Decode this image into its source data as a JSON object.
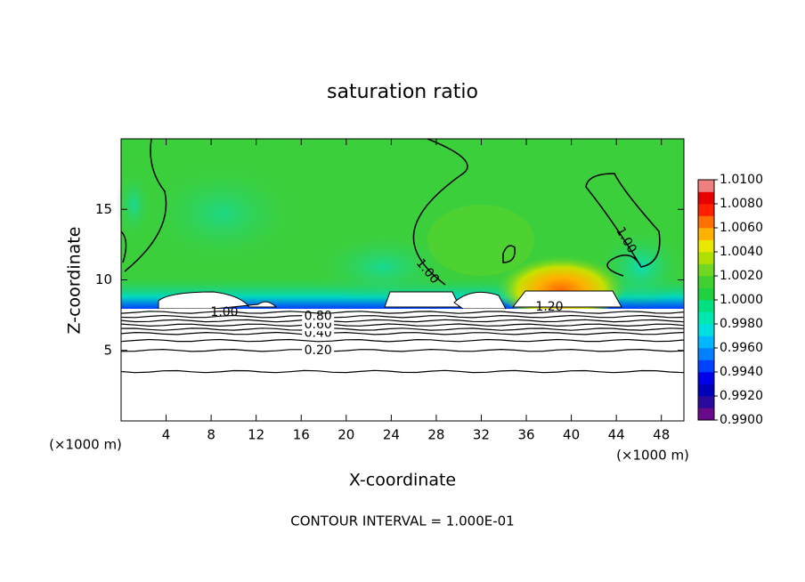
{
  "chart_data": {
    "type": "contour",
    "title": "saturation ratio",
    "x_label": "X-coordinate",
    "y_label": "Z-coordinate",
    "x_unit": "(×1000 m)",
    "y_unit": "(×1000 m)",
    "xlim": [
      0,
      50
    ],
    "xticks": [
      4,
      8,
      12,
      16,
      20,
      24,
      28,
      32,
      36,
      40,
      44,
      48
    ],
    "ylim": [
      0,
      20
    ],
    "yticks": [
      5,
      10,
      15
    ],
    "contours": [
      {
        "level": 0.1,
        "z": 3.5
      },
      {
        "level": {
          "value": 0.2,
          "label": "0.20"
        },
        "z": 5.0
      },
      {
        "level": 0.3,
        "z": 5.7
      },
      {
        "level": {
          "value": 0.4,
          "label": "0.40"
        },
        "z": 6.2
      },
      {
        "level": 0.5,
        "z": 6.5
      },
      {
        "level": {
          "value": 0.6,
          "label": "0.60"
        },
        "z": 6.8
      },
      {
        "level": 0.7,
        "z": 7.1
      },
      {
        "level": {
          "value": 0.8,
          "label": "0.80"
        },
        "z": 7.4
      },
      {
        "level": 0.9,
        "z": 7.7
      }
    ],
    "cloud_contour_labels": [
      {
        "value": 1.0,
        "label": "1.00"
      },
      {
        "value": 1.0,
        "label": "1.00"
      },
      {
        "value": 1.0,
        "label": "1.00"
      },
      {
        "value": 1.2,
        "label": "1.20"
      }
    ],
    "colorbar": {
      "lim": [
        0.99,
        1.01
      ],
      "ticks": [
        {
          "value": 0.99,
          "label": "0.9900"
        },
        {
          "value": 0.992,
          "label": "0.9920"
        },
        {
          "value": 0.994,
          "label": "0.9940"
        },
        {
          "value": 0.996,
          "label": "0.9960"
        },
        {
          "value": 0.998,
          "label": "0.9980"
        },
        {
          "value": 1.0,
          "label": "1.0000"
        },
        {
          "value": 1.002,
          "label": "1.0020"
        },
        {
          "value": 1.004,
          "label": "1.0040"
        },
        {
          "value": 1.006,
          "label": "1.0060"
        },
        {
          "value": 1.008,
          "label": "1.0080"
        },
        {
          "value": 1.01,
          "label": "1.0100"
        }
      ],
      "colors": [
        "#6a0a8a",
        "#2a0a9a",
        "#0000b8",
        "#0000e8",
        "#0040ff",
        "#0080ff",
        "#00b8ff",
        "#00e0e0",
        "#00e8b0",
        "#00e080",
        "#20d040",
        "#40d030",
        "#70d820",
        "#b0e000",
        "#e8e800",
        "#ffb000",
        "#ff7000",
        "#ff2000",
        "#e80000",
        "#f08080"
      ]
    },
    "footer": "CONTOUR INTERVAL = 1.000E-01"
  }
}
